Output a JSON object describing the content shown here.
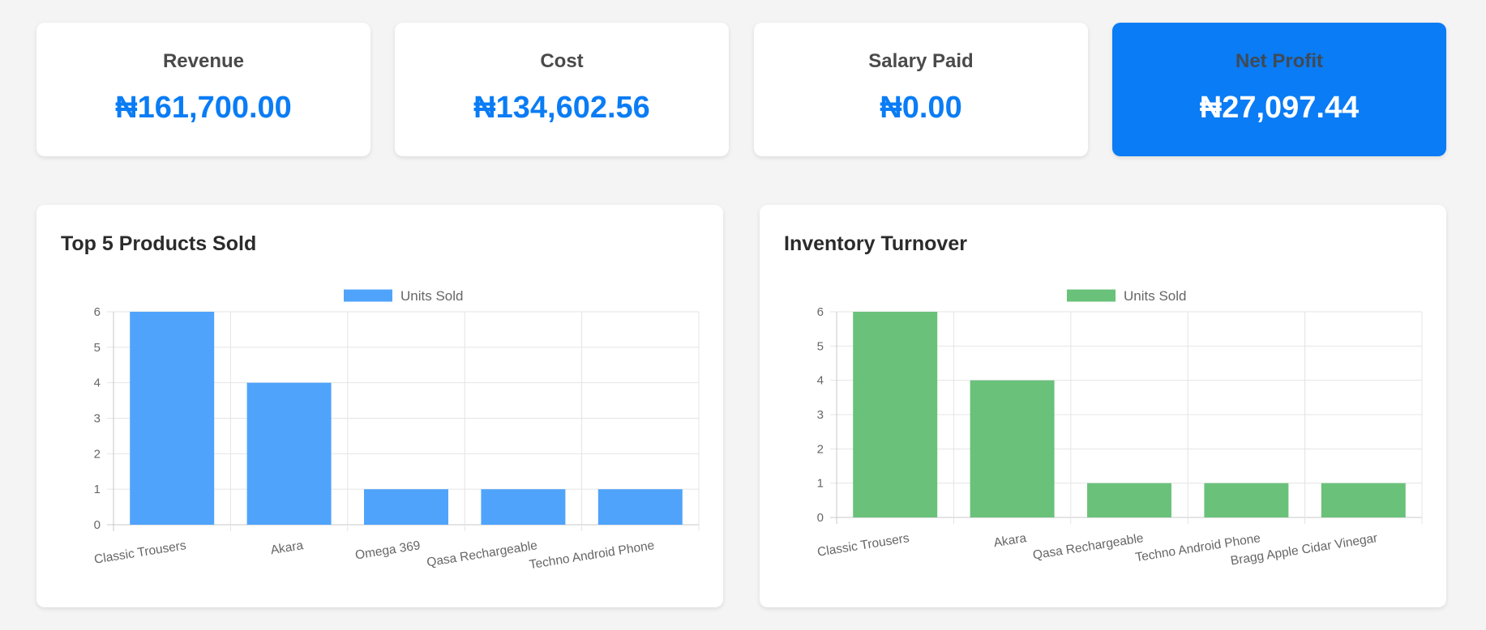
{
  "stats": [
    {
      "label": "Revenue",
      "value": "₦161,700.00"
    },
    {
      "label": "Cost",
      "value": "₦134,602.56"
    },
    {
      "label": "Salary Paid",
      "value": "₦0.00"
    },
    {
      "label": "Net Profit",
      "value": "₦27,097.44"
    }
  ],
  "colors": {
    "accent": "#0a7cf5",
    "blue_bar": "#4fa3fb",
    "green_bar": "#6ac17a"
  },
  "chart_data": [
    {
      "type": "bar",
      "title": "Top 5 Products Sold",
      "categories": [
        "Classic Trousers",
        "Akara",
        "Omega 369",
        "Qasa Rechargeable",
        "Techno Android Phone"
      ],
      "series": [
        {
          "name": "Units Sold",
          "values": [
            6,
            4,
            1,
            1,
            1
          ]
        }
      ],
      "ylim": [
        0,
        6
      ],
      "yticks": [
        0,
        1,
        2,
        3,
        4,
        5,
        6
      ],
      "grid": true,
      "legend": "top-center"
    },
    {
      "type": "bar",
      "title": "Inventory Turnover",
      "categories": [
        "Classic Trousers",
        "Akara",
        "Qasa Rechargeable",
        "Techno Android Phone",
        "Bragg Apple Cidar Vinegar"
      ],
      "series": [
        {
          "name": "Units Sold",
          "values": [
            6,
            4,
            1,
            1,
            1
          ]
        }
      ],
      "ylim": [
        0,
        6
      ],
      "yticks": [
        0,
        1,
        2,
        3,
        4,
        5,
        6
      ],
      "grid": true,
      "legend": "top-center"
    }
  ]
}
